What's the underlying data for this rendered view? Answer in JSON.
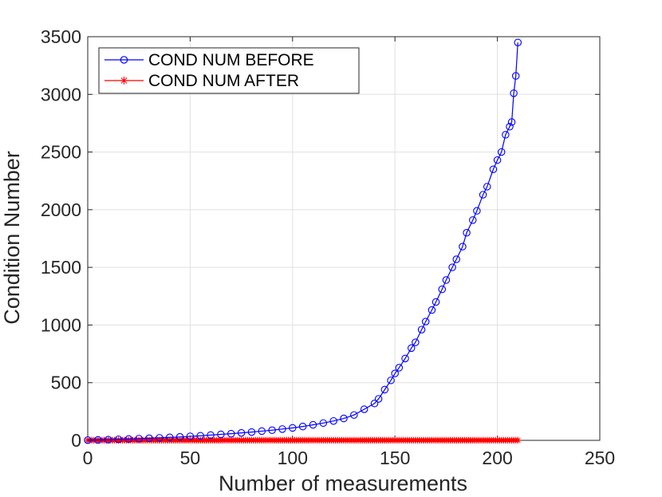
{
  "chart_data": {
    "type": "line",
    "xlabel": "Number of measurements",
    "ylabel": "Condition Number",
    "xlim": [
      0,
      250
    ],
    "ylim": [
      0,
      3500
    ],
    "xticks": [
      0,
      50,
      100,
      150,
      200,
      250
    ],
    "yticks": [
      0,
      500,
      1000,
      1500,
      2000,
      2500,
      3000,
      3500
    ],
    "grid": true,
    "legend_position": "top-left",
    "series": [
      {
        "name": "COND NUM BEFORE",
        "color": "#0000ff",
        "marker": "circle",
        "x": [
          0,
          5,
          10,
          15,
          20,
          25,
          30,
          35,
          40,
          45,
          50,
          55,
          60,
          65,
          70,
          75,
          80,
          85,
          90,
          95,
          100,
          105,
          110,
          115,
          120,
          125,
          130,
          135,
          140,
          142,
          145,
          148,
          150,
          152,
          155,
          158,
          160,
          163,
          165,
          168,
          170,
          173,
          175,
          178,
          180,
          183,
          185,
          188,
          190,
          193,
          195,
          198,
          200,
          202,
          204,
          206,
          207,
          208,
          209,
          210
        ],
        "y": [
          2,
          4,
          6,
          9,
          12,
          15,
          18,
          22,
          26,
          30,
          35,
          40,
          46,
          52,
          58,
          65,
          72,
          80,
          88,
          98,
          108,
          120,
          135,
          150,
          168,
          190,
          220,
          270,
          320,
          360,
          440,
          520,
          580,
          630,
          710,
          800,
          850,
          960,
          1030,
          1130,
          1200,
          1310,
          1390,
          1500,
          1570,
          1680,
          1800,
          1910,
          1990,
          2130,
          2200,
          2350,
          2430,
          2500,
          2650,
          2720,
          2760,
          3010,
          3160,
          3450
        ]
      },
      {
        "name": "COND NUM AFTER",
        "color": "#ff0000",
        "marker": "star",
        "x_start": 0,
        "x_end": 210,
        "x_step": 1,
        "y_value": 1
      }
    ]
  }
}
